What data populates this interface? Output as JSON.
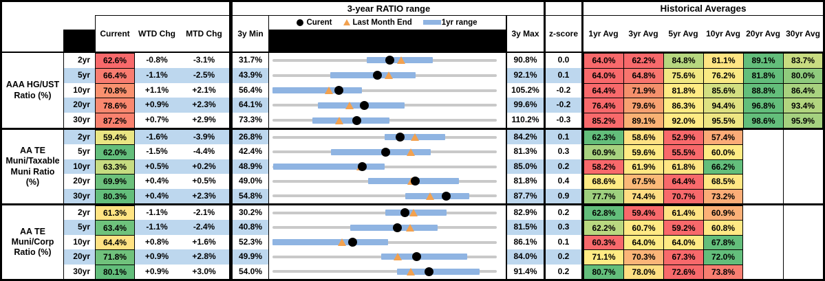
{
  "chart_data": {
    "type": "table",
    "title": "Municipal ratio dashboard with 3-year range plots and historical average heatmap",
    "section_titles": {
      "range": "3-year RATIO range",
      "historical": "Historical Averages"
    },
    "legend": {
      "current": "Curent",
      "last_month": "Last Month End",
      "range_1yr": "1yr range"
    },
    "columns": {
      "current": "Current",
      "wtd": "WTD Chg",
      "mtd": "MTD Chg",
      "min": "3y Min",
      "max": "3y Max",
      "zscore": "z-score",
      "avgs": [
        "1yr Avg",
        "3yr Avg",
        "5yr Avg",
        "10yr Avg",
        "20yr Avg",
        "30yr Avg"
      ]
    },
    "colors": {
      "stripe": "#BDD7EE",
      "bar_1yr": "#8FB4E2",
      "gray_line": "#C9C9C9",
      "triangle": "#F2A14F",
      "dot": "#000000",
      "heat_red": "#F8696B",
      "heat_yellow": "#FFEB84",
      "heat_green": "#63BE7B"
    },
    "groups": [
      {
        "label": "AAA HG/UST\nRatio (%)",
        "rows": [
          {
            "tenor": "2yr",
            "stripe": false,
            "current": {
              "v": "62.6%",
              "c": "#F8696B"
            },
            "wtd": "-0.8%",
            "mtd": "-3.1%",
            "min": "31.7%",
            "max": "90.8%",
            "min_n": 31.7,
            "max_n": 90.8,
            "cur_n": 62.6,
            "lme_n": 65.7,
            "bar": [
              56.6,
              74.0
            ],
            "z": "0.0",
            "avgs": [
              {
                "v": "64.0%",
                "c": "#F8696B"
              },
              {
                "v": "62.2%",
                "c": "#F8696B"
              },
              {
                "v": "84.8%",
                "c": "#B7D77F"
              },
              {
                "v": "81.1%",
                "c": "#FFE583"
              },
              {
                "v": "89.1%",
                "c": "#63BE7B"
              },
              {
                "v": "83.7%",
                "c": "#C9DC81"
              }
            ]
          },
          {
            "tenor": "5yr",
            "stripe": true,
            "current": {
              "v": "66.4%",
              "c": "#F87C70"
            },
            "wtd": "-1.1%",
            "mtd": "-2.5%",
            "min": "43.9%",
            "max": "92.1%",
            "min_n": 43.9,
            "max_n": 92.1,
            "cur_n": 66.4,
            "lme_n": 68.9,
            "bar": [
              56.3,
              74.7
            ],
            "z": "0.1",
            "avgs": [
              {
                "v": "64.0%",
                "c": "#F8696B"
              },
              {
                "v": "64.8%",
                "c": "#F8756E"
              },
              {
                "v": "75.6%",
                "c": "#F2E883"
              },
              {
                "v": "76.2%",
                "c": "#FAEA84"
              },
              {
                "v": "81.8%",
                "c": "#63BE7B"
              },
              {
                "v": "80.0%",
                "c": "#8FCB7D"
              }
            ]
          },
          {
            "tenor": "10yr",
            "stripe": false,
            "current": {
              "v": "70.8%",
              "c": "#F9916F"
            },
            "wtd": "+1.1%",
            "mtd": "+2.1%",
            "min": "56.4%",
            "max": "105.2%",
            "min_n": 56.4,
            "max_n": 105.2,
            "cur_n": 70.8,
            "lme_n": 68.7,
            "bar": [
              56.4,
              75.8
            ],
            "z": "-0.2",
            "avgs": [
              {
                "v": "64.4%",
                "c": "#F8696B"
              },
              {
                "v": "71.9%",
                "c": "#F5906C"
              },
              {
                "v": "81.8%",
                "c": "#FFEB84"
              },
              {
                "v": "85.6%",
                "c": "#D3DF81"
              },
              {
                "v": "88.8%",
                "c": "#63BE7B"
              },
              {
                "v": "86.4%",
                "c": "#A8D27F"
              }
            ]
          },
          {
            "tenor": "20yr",
            "stripe": true,
            "current": {
              "v": "78.6%",
              "c": "#F9886F"
            },
            "wtd": "+0.9%",
            "mtd": "+2.3%",
            "min": "64.1%",
            "max": "99.6%",
            "min_n": 64.1,
            "max_n": 99.6,
            "cur_n": 78.6,
            "lme_n": 76.3,
            "bar": [
              71.3,
              85.0
            ],
            "z": "-0.2",
            "avgs": [
              {
                "v": "76.4%",
                "c": "#F8696B"
              },
              {
                "v": "79.6%",
                "c": "#F7A171"
              },
              {
                "v": "86.3%",
                "c": "#FFEB84"
              },
              {
                "v": "94.4%",
                "c": "#DFE282"
              },
              {
                "v": "96.8%",
                "c": "#63BE7B"
              },
              {
                "v": "93.4%",
                "c": "#B2D57F"
              }
            ]
          },
          {
            "tenor": "30yr",
            "stripe": false,
            "current": {
              "v": "87.2%",
              "c": "#F9816E"
            },
            "wtd": "+0.7%",
            "mtd": "+2.9%",
            "min": "73.3%",
            "max": "110.2%",
            "min_n": 73.3,
            "max_n": 110.2,
            "cur_n": 87.2,
            "lme_n": 84.3,
            "bar": [
              79.9,
              92.6
            ],
            "z": "-0.3",
            "avgs": [
              {
                "v": "85.2%",
                "c": "#F8696B"
              },
              {
                "v": "89.1%",
                "c": "#F9B174"
              },
              {
                "v": "92.0%",
                "c": "#FFEB84"
              },
              {
                "v": "95.5%",
                "c": "#EEE683"
              },
              {
                "v": "98.6%",
                "c": "#63BE7B"
              },
              {
                "v": "95.9%",
                "c": "#A5D17F"
              }
            ]
          }
        ]
      },
      {
        "label": "AA TE\nMuni/Taxable\nMuni Ratio\n(%)",
        "rows": [
          {
            "tenor": "2yr",
            "stripe": true,
            "current": {
              "v": "59.4%",
              "c": "#E9E583"
            },
            "wtd": "-1.6%",
            "mtd": "-3.9%",
            "min": "26.8%",
            "max": "84.2%",
            "min_n": 26.8,
            "max_n": 84.2,
            "cur_n": 59.4,
            "lme_n": 63.3,
            "bar": [
              55.5,
              71.0
            ],
            "z": "0.1",
            "avgs": [
              {
                "v": "62.3%",
                "c": "#63BE7B"
              },
              {
                "v": "58.6%",
                "c": "#FFE183"
              },
              {
                "v": "52.9%",
                "c": "#F8696B"
              },
              {
                "v": "57.4%",
                "c": "#FBAB77"
              },
              null,
              null
            ]
          },
          {
            "tenor": "5yr",
            "stripe": false,
            "current": {
              "v": "62.0%",
              "c": "#63BE7B"
            },
            "wtd": "-1.5%",
            "mtd": "-4.4%",
            "min": "42.4%",
            "max": "81.3%",
            "min_n": 42.4,
            "max_n": 81.3,
            "cur_n": 62.0,
            "lme_n": 66.4,
            "bar": [
              52.5,
              69.8
            ],
            "z": "0.3",
            "avgs": [
              {
                "v": "60.9%",
                "c": "#A8D27F"
              },
              {
                "v": "59.6%",
                "c": "#FFEB84"
              },
              {
                "v": "55.5%",
                "c": "#F8696B"
              },
              {
                "v": "60.0%",
                "c": "#FFEB84"
              },
              null,
              null
            ]
          },
          {
            "tenor": "10yr",
            "stripe": true,
            "current": {
              "v": "63.3%",
              "c": "#C6DC81"
            },
            "wtd": "+0.5%",
            "mtd": "+0.2%",
            "min": "48.9%",
            "max": "85.0%",
            "min_n": 48.9,
            "max_n": 85.0,
            "cur_n": 63.3,
            "lme_n": 63.1,
            "bar": [
              49.0,
              67.0
            ],
            "z": "0.2",
            "avgs": [
              {
                "v": "58.2%",
                "c": "#F8696B"
              },
              {
                "v": "61.9%",
                "c": "#FFE884"
              },
              {
                "v": "61.8%",
                "c": "#FFE583"
              },
              {
                "v": "66.2%",
                "c": "#63BE7B"
              },
              null,
              null
            ]
          },
          {
            "tenor": "20yr",
            "stripe": false,
            "current": {
              "v": "69.9%",
              "c": "#6CC17C"
            },
            "wtd": "+0.4%",
            "mtd": "+0.5%",
            "min": "49.0%",
            "max": "81.8%",
            "min_n": 49.0,
            "max_n": 81.8,
            "cur_n": 69.9,
            "lme_n": 69.4,
            "bar": [
              63.0,
              76.3
            ],
            "z": "0.4",
            "avgs": [
              {
                "v": "68.6%",
                "c": "#FFEB84"
              },
              {
                "v": "67.5%",
                "c": "#FBB978"
              },
              {
                "v": "64.4%",
                "c": "#F8696B"
              },
              {
                "v": "68.5%",
                "c": "#FFE783"
              },
              null,
              null
            ]
          },
          {
            "tenor": "30yr",
            "stripe": true,
            "current": {
              "v": "80.3%",
              "c": "#63BE7B"
            },
            "wtd": "+0.4%",
            "mtd": "+2.3%",
            "min": "54.8%",
            "max": "87.7%",
            "min_n": 54.8,
            "max_n": 87.7,
            "cur_n": 80.3,
            "lme_n": 78.0,
            "bar": [
              74.3,
              83.7
            ],
            "z": "0.9",
            "avgs": [
              {
                "v": "77.7%",
                "c": "#9ED07E"
              },
              {
                "v": "74.4%",
                "c": "#FFDD82"
              },
              {
                "v": "70.7%",
                "c": "#F8696B"
              },
              {
                "v": "73.2%",
                "c": "#FBAD77"
              },
              null,
              null
            ]
          }
        ]
      },
      {
        "label": "AA TE\nMuni/Corp\nRatio (%)",
        "rows": [
          {
            "tenor": "2yr",
            "stripe": false,
            "current": {
              "v": "61.3%",
              "c": "#FFE483"
            },
            "wtd": "-1.1%",
            "mtd": "-2.1%",
            "min": "30.2%",
            "max": "82.9%",
            "min_n": 30.2,
            "max_n": 82.9,
            "cur_n": 61.3,
            "lme_n": 63.4,
            "bar": [
              56.7,
              71.1
            ],
            "z": "0.2",
            "avgs": [
              {
                "v": "62.8%",
                "c": "#63BE7B"
              },
              {
                "v": "59.4%",
                "c": "#F8696B"
              },
              {
                "v": "61.4%",
                "c": "#FFE283"
              },
              {
                "v": "60.9%",
                "c": "#FBB077"
              },
              null,
              null
            ]
          },
          {
            "tenor": "5yr",
            "stripe": true,
            "current": {
              "v": "63.4%",
              "c": "#6EC27C"
            },
            "wtd": "-1.1%",
            "mtd": "-2.4%",
            "min": "40.8%",
            "max": "81.5%",
            "min_n": 40.8,
            "max_n": 81.5,
            "cur_n": 63.4,
            "lme_n": 65.8,
            "bar": [
              54.9,
              70.8
            ],
            "z": "0.3",
            "avgs": [
              {
                "v": "62.2%",
                "c": "#B9D880"
              },
              {
                "v": "60.7%",
                "c": "#FFE984"
              },
              {
                "v": "59.2%",
                "c": "#F8696B"
              },
              {
                "v": "60.8%",
                "c": "#FFE884"
              },
              null,
              null
            ]
          },
          {
            "tenor": "10yr",
            "stripe": false,
            "current": {
              "v": "64.4%",
              "c": "#FFE283"
            },
            "wtd": "+0.8%",
            "mtd": "+1.6%",
            "min": "52.3%",
            "max": "86.1%",
            "min_n": 52.3,
            "max_n": 86.1,
            "cur_n": 64.4,
            "lme_n": 62.8,
            "bar": [
              52.3,
              69.7
            ],
            "z": "0.1",
            "avgs": [
              {
                "v": "60.3%",
                "c": "#F8696B"
              },
              {
                "v": "64.0%",
                "c": "#FFEB84"
              },
              {
                "v": "64.0%",
                "c": "#FFEB84"
              },
              {
                "v": "67.8%",
                "c": "#63BE7B"
              },
              null,
              null
            ]
          },
          {
            "tenor": "20yr",
            "stripe": true,
            "current": {
              "v": "71.8%",
              "c": "#70C27C"
            },
            "wtd": "+0.9%",
            "mtd": "+2.8%",
            "min": "49.9%",
            "max": "84.0%",
            "min_n": 49.9,
            "max_n": 84.0,
            "cur_n": 71.8,
            "lme_n": 69.0,
            "bar": [
              66.4,
              79.5
            ],
            "z": "0.2",
            "avgs": [
              {
                "v": "71.1%",
                "c": "#FFEB84"
              },
              {
                "v": "70.3%",
                "c": "#FBB578"
              },
              {
                "v": "67.3%",
                "c": "#F8696B"
              },
              {
                "v": "72.0%",
                "c": "#63BE7B"
              },
              null,
              null
            ]
          },
          {
            "tenor": "30yr",
            "stripe": false,
            "current": {
              "v": "80.1%",
              "c": "#63BE7B"
            },
            "wtd": "+0.9%",
            "mtd": "+3.0%",
            "min": "54.0%",
            "max": "91.4%",
            "min_n": 54.0,
            "max_n": 91.4,
            "cur_n": 80.1,
            "lme_n": 77.1,
            "bar": [
              74.8,
              88.5
            ],
            "z": "0.2",
            "avgs": [
              {
                "v": "80.7%",
                "c": "#63BE7B"
              },
              {
                "v": "78.0%",
                "c": "#FFDF82"
              },
              {
                "v": "72.6%",
                "c": "#F8696B"
              },
              {
                "v": "73.8%",
                "c": "#F87E71"
              },
              null,
              null
            ]
          }
        ]
      }
    ]
  }
}
